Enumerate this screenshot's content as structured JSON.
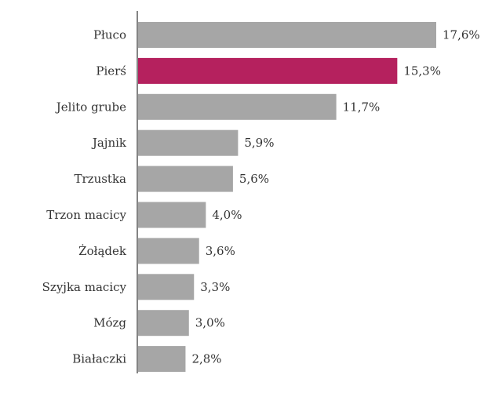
{
  "chart_data": {
    "type": "bar",
    "orientation": "horizontal",
    "categories": [
      "Płuco",
      "Pierś",
      "Jelito grube",
      "Jajnik",
      "Trzustka",
      "Trzon macicy",
      "Żołądek",
      "Szyjka macicy",
      "Mózg",
      "Białaczki"
    ],
    "values": [
      17.6,
      15.3,
      11.7,
      5.9,
      5.6,
      4.0,
      3.6,
      3.3,
      3.0,
      2.8
    ],
    "value_labels": [
      "17,6%",
      "15,3%",
      "11,7%",
      "5,9%",
      "5,6%",
      "4,0%",
      "3,6%",
      "3,3%",
      "3,0%",
      "2,8%"
    ],
    "highlight_index": 1,
    "xlim": [
      0,
      17.6
    ],
    "grid": false,
    "legend": false,
    "colors": {
      "bar": "#a6a6a6",
      "highlight": "#b5215e",
      "axis": "#333333",
      "text": "#333333"
    }
  }
}
